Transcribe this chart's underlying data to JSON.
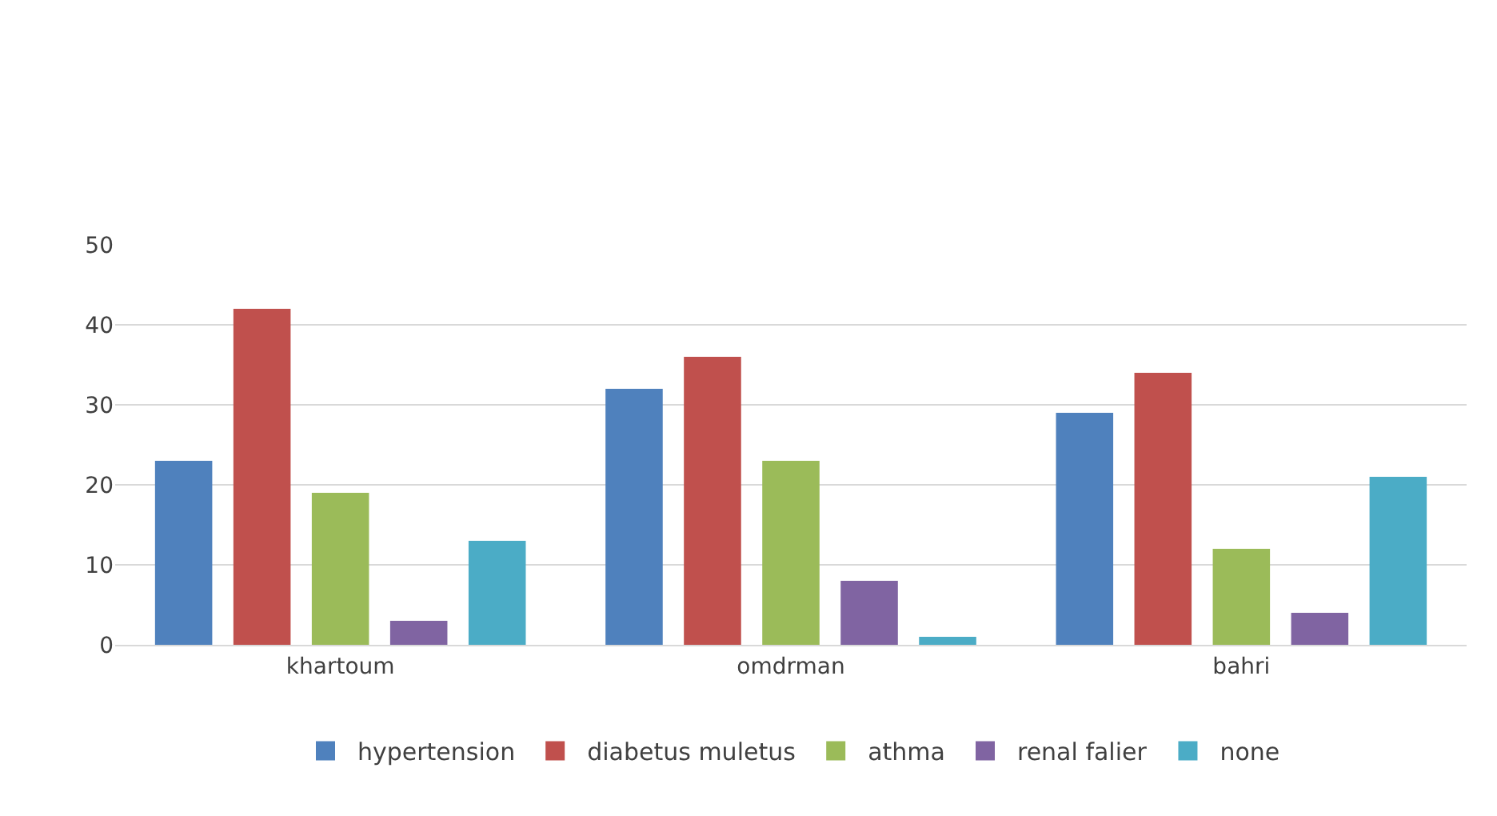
{
  "chart_data": {
    "type": "bar",
    "categories": [
      "khartoum",
      "omdrman",
      "bahri"
    ],
    "series": [
      {
        "name": "hypertension",
        "color": "#4f81bd",
        "values": [
          23,
          32,
          29
        ]
      },
      {
        "name": "diabetus muletus",
        "color": "#c0504d",
        "values": [
          42,
          36,
          34
        ]
      },
      {
        "name": "athma",
        "color": "#9bbb59",
        "values": [
          19,
          23,
          12
        ]
      },
      {
        "name": "renal falier",
        "color": "#8064a2",
        "values": [
          3,
          8,
          4
        ]
      },
      {
        "name": "none",
        "color": "#4bacc6",
        "values": [
          13,
          1,
          21
        ]
      }
    ],
    "ylim": [
      0,
      50
    ],
    "yticks": [
      0,
      10,
      20,
      30,
      40,
      50
    ],
    "grid": "y",
    "legend": "bottom"
  }
}
